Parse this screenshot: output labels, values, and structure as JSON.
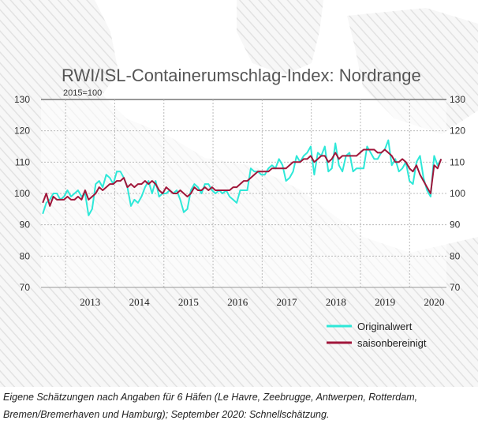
{
  "chart_data": {
    "type": "line",
    "title": "RWI/ISL-Containerumschlag-Index: Nordrange",
    "subtitle": "2015=100",
    "ylim": [
      70,
      130
    ],
    "y_ticks": [
      70,
      80,
      90,
      100,
      110,
      120,
      130
    ],
    "x_start_year": 2012.5,
    "x_end_year": 2020.75,
    "year_labels": [
      "2013",
      "2014",
      "2015",
      "2016",
      "2017",
      "2018",
      "2019",
      "2020"
    ],
    "grid": true,
    "legend_position": "bottom-right",
    "series": [
      {
        "name": "Originalwert",
        "color": "#2ee8d8",
        "values": [
          93.5,
          97,
          98,
          100,
          100,
          98,
          99,
          101,
          99,
          100,
          101,
          99,
          100,
          93,
          95,
          103,
          104,
          102,
          106,
          105,
          103,
          107,
          107,
          105,
          102,
          96,
          98,
          97,
          99,
          102,
          104,
          100,
          104,
          99,
          100,
          100,
          101,
          100,
          101,
          98,
          94,
          95,
          101,
          103,
          102,
          100,
          103,
          103,
          101,
          100,
          101,
          100,
          101,
          99,
          98,
          97,
          101,
          101,
          101,
          108,
          107,
          107,
          106,
          106,
          108,
          109,
          108,
          111,
          109,
          104,
          105,
          107,
          112,
          110,
          112,
          113,
          115,
          106,
          113,
          112,
          115,
          107,
          108,
          116,
          109,
          107,
          112,
          113,
          107,
          108,
          108,
          108,
          115,
          113,
          111,
          111,
          113,
          114,
          117,
          109,
          111,
          107,
          108,
          110,
          104,
          103,
          110,
          112,
          105,
          101,
          99,
          112,
          109,
          111
        ]
      },
      {
        "name": "saisonbereinigt",
        "color": "#a0163a",
        "values": [
          97,
          100,
          96,
          99,
          98,
          98,
          98,
          99,
          98,
          98,
          99,
          98,
          101,
          98,
          99,
          100,
          102,
          101,
          102,
          103,
          103,
          104,
          104,
          105,
          102,
          103,
          102,
          103,
          103,
          104,
          103,
          104,
          103,
          101,
          100,
          102,
          101,
          100,
          100,
          101,
          100,
          99,
          100,
          102,
          101,
          101,
          102,
          101,
          102,
          101,
          101,
          101,
          101,
          101,
          102,
          102,
          103,
          104,
          104,
          105,
          106,
          107,
          107,
          107,
          107,
          108,
          108,
          108,
          108,
          108,
          109,
          110,
          110,
          110,
          111,
          111,
          112,
          110,
          111,
          112,
          112,
          110,
          111,
          113,
          111,
          112,
          112,
          112,
          112,
          112,
          113,
          114,
          114,
          114,
          114,
          113,
          113,
          114,
          113,
          112,
          110,
          110,
          111,
          110,
          108,
          107,
          109,
          106,
          104,
          102,
          100,
          109,
          108,
          111
        ]
      }
    ]
  },
  "caption": "Eigene Schätzungen nach Angaben für 6 Häfen (Le Havre, Zeebrugge, Antwerpen, Rotterdam, Bremen/Bremerhaven und Hamburg); September 2020: Schnellschätzung."
}
